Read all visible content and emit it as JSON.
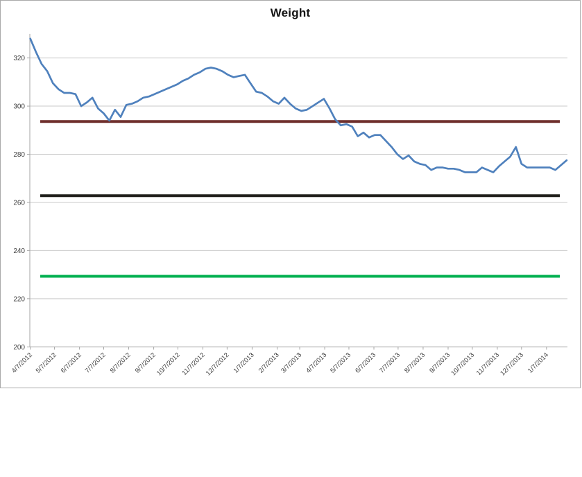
{
  "chart": {
    "title": "Weight"
  },
  "chart_data": {
    "type": "line",
    "title": "Weight",
    "x_start_label": "4/7/2012",
    "x_point_interval": "weekly",
    "x_tick_labels": [
      "4/7/2012",
      "5/7/2012",
      "6/7/2012",
      "7/7/2012",
      "8/7/2012",
      "9/7/2012",
      "10/7/2012",
      "11/7/2012",
      "12/7/2012",
      "1/7/2013",
      "2/7/2013",
      "3/7/2013",
      "4/7/2013",
      "5/7/2013",
      "6/7/2013",
      "7/7/2013",
      "8/7/2013",
      "9/7/2013",
      "10/7/2013",
      "11/7/2013",
      "12/7/2013",
      "1/7/2014"
    ],
    "y_ticks": [
      200,
      220,
      240,
      260,
      280,
      300,
      320
    ],
    "ylim": [
      200,
      330
    ],
    "grid": true,
    "legend": "none",
    "x_label_rotation": 45,
    "series": [
      {
        "name": "weight",
        "color": "#4F81BD",
        "values": [
          328,
          322.5,
          317.5,
          314.5,
          309.5,
          307,
          305.5,
          305.5,
          305,
          300,
          301.5,
          303.5,
          299,
          297,
          294,
          298.5,
          295.5,
          300.5,
          301,
          302,
          303.5,
          304,
          305,
          306,
          307,
          308,
          309,
          310.5,
          311.5,
          313,
          314,
          315.5,
          316,
          315.5,
          314.5,
          313,
          312,
          312.5,
          313,
          309.5,
          306,
          305.5,
          304,
          302,
          301,
          303.5,
          301,
          299,
          298,
          298.5,
          300,
          301.5,
          303,
          299,
          294.5,
          292,
          292.5,
          291.5,
          287.5,
          289,
          287,
          288,
          288,
          285.5,
          283,
          280,
          278,
          279.5,
          277,
          276,
          275.5,
          273.5,
          274.5,
          274.5,
          274,
          274,
          273.5,
          272.5,
          272.5,
          272.5,
          274.5,
          273.5,
          272.5,
          275,
          277,
          279,
          283,
          276,
          274.5,
          274.5,
          274.5,
          274.5,
          274.5,
          273.5,
          275.5,
          277.5
        ]
      }
    ],
    "reference_lines": [
      {
        "name": "goal-line-dark-red",
        "value": 293.6,
        "color": "#6E2E2B"
      },
      {
        "name": "goal-line-black",
        "value": 262.8,
        "color": "#21201C"
      },
      {
        "name": "goal-line-green",
        "value": 229.3,
        "color": "#00B050"
      }
    ],
    "colors": {
      "gridline": "#c9c9c9",
      "axis": "#a6a6a6",
      "tick_label": "#404040"
    }
  }
}
